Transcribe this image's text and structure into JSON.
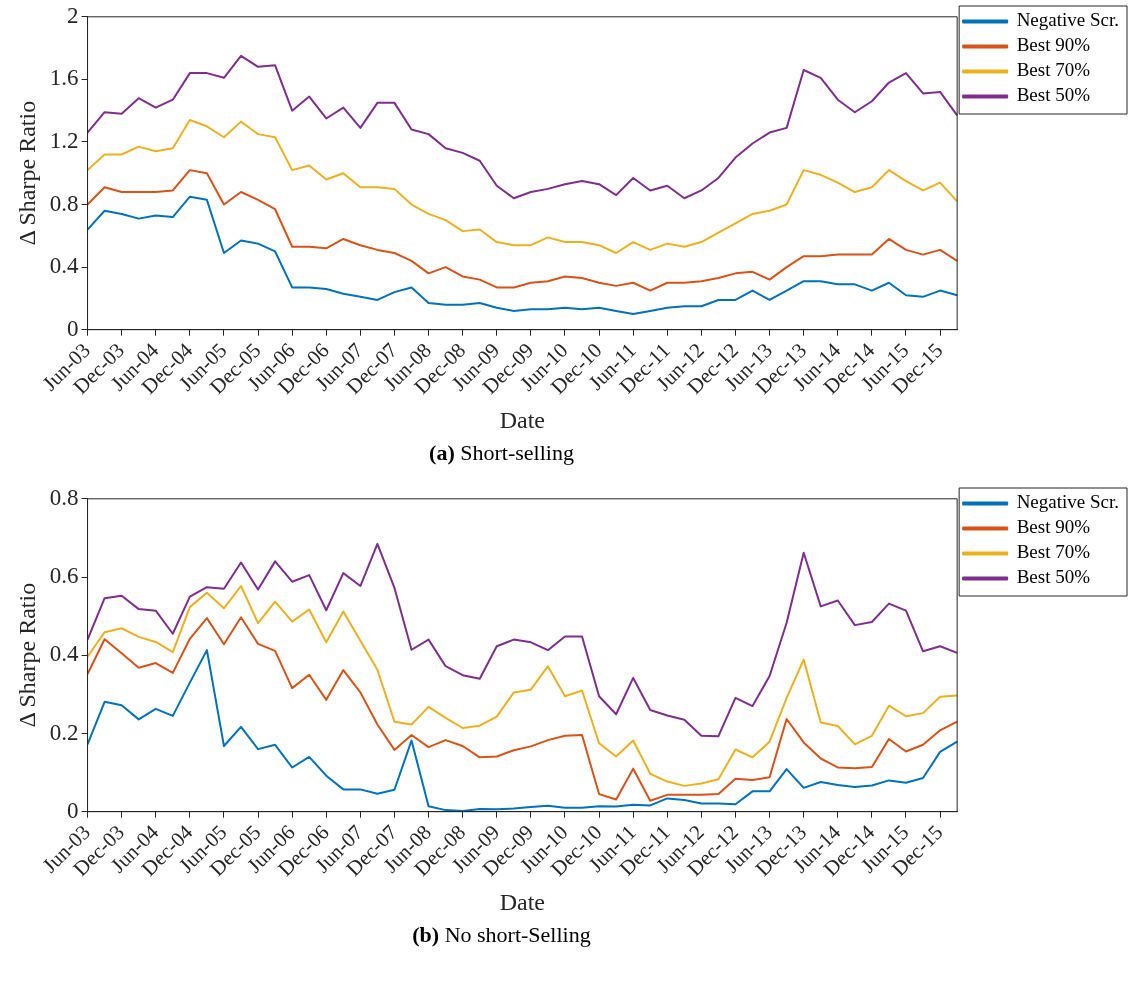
{
  "chart_data": [
    {
      "type": "line",
      "title": "(a) Short-selling",
      "xlabel": "Date",
      "ylabel": "Δ Sharpe Ratio",
      "categories": [
        "Jun-03",
        null,
        "Dec-03",
        null,
        "Jun-04",
        null,
        "Dec-04",
        null,
        "Jun-05",
        null,
        "Dec-05",
        null,
        "Jun-06",
        null,
        "Dec-06",
        null,
        "Jun-07",
        null,
        "Dec-07",
        null,
        "Jun-08",
        null,
        "Dec-08",
        null,
        "Jun-09",
        null,
        "Dec-09",
        null,
        "Jun-10",
        null,
        "Dec-10",
        null,
        "Jun-11",
        null,
        "Dec-11",
        null,
        "Jun-12",
        null,
        "Dec-12",
        null,
        "Jun-13",
        null,
        "Dec-13",
        null,
        "Jun-14",
        null,
        "Dec-14",
        null,
        "Jun-15",
        null,
        "Dec-15",
        null
      ],
      "series": [
        {
          "name": "Negative Scr.",
          "color": "#0072bd",
          "values": [
            0.64,
            0.76,
            0.74,
            0.71,
            0.73,
            0.72,
            0.85,
            0.83,
            0.49,
            0.57,
            0.55,
            0.5,
            0.27,
            0.27,
            0.26,
            0.23,
            0.21,
            0.19,
            0.24,
            0.27,
            0.17,
            0.16,
            0.16,
            0.17,
            0.14,
            0.12,
            0.13,
            0.13,
            0.14,
            0.13,
            0.14,
            0.12,
            0.1,
            0.12,
            0.14,
            0.15,
            0.15,
            0.19,
            0.19,
            0.25,
            0.19,
            0.25,
            0.31,
            0.31,
            0.29,
            0.29,
            0.25,
            0.3,
            0.22,
            0.21,
            0.25,
            0.22
          ]
        },
        {
          "name": "Best 90%",
          "color": "#d95319",
          "values": [
            0.8,
            0.91,
            0.88,
            0.88,
            0.88,
            0.89,
            1.02,
            1.0,
            0.8,
            0.88,
            0.83,
            0.77,
            0.53,
            0.53,
            0.52,
            0.58,
            0.54,
            0.51,
            0.49,
            0.44,
            0.36,
            0.4,
            0.34,
            0.32,
            0.27,
            0.27,
            0.3,
            0.31,
            0.34,
            0.33,
            0.3,
            0.28,
            0.3,
            0.25,
            0.3,
            0.3,
            0.31,
            0.33,
            0.36,
            0.37,
            0.32,
            0.4,
            0.47,
            0.47,
            0.48,
            0.48,
            0.48,
            0.58,
            0.51,
            0.48,
            0.51,
            0.44
          ]
        },
        {
          "name": "Best 70%",
          "color": "#edb120",
          "values": [
            1.02,
            1.12,
            1.12,
            1.17,
            1.14,
            1.16,
            1.34,
            1.3,
            1.23,
            1.33,
            1.25,
            1.23,
            1.02,
            1.05,
            0.96,
            1.0,
            0.91,
            0.91,
            0.9,
            0.8,
            0.74,
            0.7,
            0.63,
            0.64,
            0.56,
            0.54,
            0.54,
            0.59,
            0.56,
            0.56,
            0.54,
            0.49,
            0.56,
            0.51,
            0.55,
            0.53,
            0.56,
            0.62,
            0.68,
            0.74,
            0.76,
            0.8,
            1.02,
            0.99,
            0.94,
            0.88,
            0.91,
            1.02,
            0.95,
            0.89,
            0.94,
            0.82
          ]
        },
        {
          "name": "Best 50%",
          "color": "#7e2f8e",
          "values": [
            1.26,
            1.39,
            1.38,
            1.48,
            1.42,
            1.47,
            1.64,
            1.64,
            1.61,
            1.75,
            1.68,
            1.69,
            1.4,
            1.49,
            1.35,
            1.42,
            1.29,
            1.45,
            1.45,
            1.28,
            1.25,
            1.16,
            1.13,
            1.08,
            0.92,
            0.84,
            0.88,
            0.9,
            0.93,
            0.95,
            0.93,
            0.86,
            0.97,
            0.89,
            0.92,
            0.84,
            0.89,
            0.97,
            1.1,
            1.19,
            1.26,
            1.29,
            1.66,
            1.61,
            1.47,
            1.39,
            1.46,
            1.58,
            1.64,
            1.51,
            1.52,
            1.37
          ]
        }
      ],
      "ylim": [
        0,
        2
      ],
      "yticks": [
        0,
        0.4,
        0.8,
        1.2,
        1.6,
        2
      ],
      "grid": false,
      "legend": "top right",
      "line_style": "solid",
      "marker": "none"
    },
    {
      "type": "line",
      "title": "(b) No short-Selling",
      "xlabel": "Date",
      "ylabel": "Δ Sharpe Ratio",
      "categories": [
        "Jun-03",
        null,
        "Dec-03",
        null,
        "Jun-04",
        null,
        "Dec-04",
        null,
        "Jun-05",
        null,
        "Dec-05",
        null,
        "Jun-06",
        null,
        "Dec-06",
        null,
        "Jun-07",
        null,
        "Dec-07",
        null,
        "Jun-08",
        null,
        "Dec-08",
        null,
        "Jun-09",
        null,
        "Dec-09",
        null,
        "Jun-10",
        null,
        "Dec-10",
        null,
        "Jun-11",
        null,
        "Dec-11",
        null,
        "Jun-12",
        null,
        "Dec-12",
        null,
        "Jun-13",
        null,
        "Dec-13",
        null,
        "Jun-14",
        null,
        "Dec-14",
        null,
        "Jun-15",
        null,
        "Dec-15",
        null
      ],
      "series": [
        {
          "name": "Negative Scr.",
          "color": "#0072bd",
          "values": [
            0.172,
            0.281,
            0.272,
            0.236,
            0.263,
            0.245,
            0.33,
            0.413,
            0.168,
            0.217,
            0.16,
            0.171,
            0.113,
            0.14,
            0.092,
            0.057,
            0.057,
            0.046,
            0.056,
            0.182,
            0.014,
            0.004,
            0.002,
            0.007,
            0.006,
            0.008,
            0.012,
            0.015,
            0.01,
            0.01,
            0.014,
            0.013,
            0.018,
            0.016,
            0.034,
            0.03,
            0.021,
            0.021,
            0.019,
            0.052,
            0.052,
            0.109,
            0.061,
            0.076,
            0.068,
            0.063,
            0.067,
            0.08,
            0.074,
            0.086,
            0.153,
            0.179
          ]
        },
        {
          "name": "Best 90%",
          "color": "#d95319",
          "values": [
            0.352,
            0.441,
            0.405,
            0.368,
            0.38,
            0.355,
            0.442,
            0.495,
            0.428,
            0.497,
            0.429,
            0.411,
            0.316,
            0.35,
            0.286,
            0.362,
            0.305,
            0.223,
            0.158,
            0.196,
            0.165,
            0.183,
            0.168,
            0.139,
            0.141,
            0.157,
            0.167,
            0.183,
            0.194,
            0.196,
            0.045,
            0.031,
            0.11,
            0.028,
            0.043,
            0.043,
            0.043,
            0.045,
            0.084,
            0.081,
            0.088,
            0.237,
            0.177,
            0.136,
            0.113,
            0.111,
            0.114,
            0.186,
            0.154,
            0.171,
            0.208,
            0.23
          ]
        },
        {
          "name": "Best 70%",
          "color": "#edb120",
          "values": [
            0.396,
            0.459,
            0.469,
            0.447,
            0.434,
            0.408,
            0.523,
            0.56,
            0.52,
            0.577,
            0.482,
            0.537,
            0.486,
            0.517,
            0.433,
            0.512,
            0.437,
            0.363,
            0.23,
            0.223,
            0.268,
            0.24,
            0.214,
            0.22,
            0.243,
            0.305,
            0.312,
            0.372,
            0.295,
            0.31,
            0.175,
            0.141,
            0.182,
            0.097,
            0.077,
            0.066,
            0.072,
            0.083,
            0.159,
            0.139,
            0.179,
            0.291,
            0.389,
            0.228,
            0.219,
            0.172,
            0.194,
            0.271,
            0.244,
            0.252,
            0.294,
            0.297
          ]
        },
        {
          "name": "Best 50%",
          "color": "#7e2f8e",
          "values": [
            0.44,
            0.546,
            0.552,
            0.518,
            0.514,
            0.455,
            0.55,
            0.574,
            0.57,
            0.637,
            0.568,
            0.64,
            0.588,
            0.605,
            0.515,
            0.61,
            0.577,
            0.685,
            0.572,
            0.414,
            0.44,
            0.372,
            0.349,
            0.34,
            0.423,
            0.44,
            0.433,
            0.413,
            0.448,
            0.448,
            0.295,
            0.249,
            0.342,
            0.26,
            0.246,
            0.235,
            0.194,
            0.193,
            0.291,
            0.27,
            0.347,
            0.483,
            0.662,
            0.525,
            0.54,
            0.477,
            0.485,
            0.532,
            0.514,
            0.41,
            0.423,
            0.406
          ]
        }
      ],
      "ylim": [
        0,
        0.8
      ],
      "yticks": [
        0,
        0.2,
        0.4,
        0.6,
        0.8
      ],
      "grid": false,
      "legend": "top right",
      "line_style": "solid",
      "marker": "none"
    }
  ]
}
